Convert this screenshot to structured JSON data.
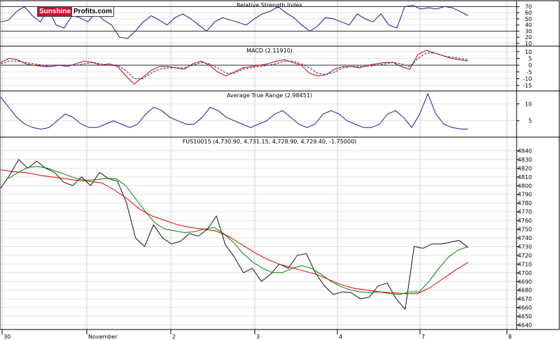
{
  "logo": {
    "part1": "Sunshine",
    "part2": "Profits.com"
  },
  "x_labels": [
    "30",
    "November",
    "2",
    "3",
    "4",
    "7",
    "8"
  ],
  "chart_data": [
    {
      "type": "line",
      "title": "Relative Strength Index",
      "ylim": [
        10,
        75
      ],
      "yticks": [
        10,
        20,
        30,
        40,
        50,
        60,
        70
      ],
      "reference_lines": [
        30,
        70
      ],
      "series": [
        {
          "values": [
            45,
            48,
            62,
            70,
            55,
            45,
            66,
            40,
            35,
            55,
            52,
            45,
            60,
            48,
            40,
            20,
            18,
            30,
            45,
            55,
            48,
            40,
            52,
            58,
            50,
            40,
            30,
            45,
            52,
            48,
            44,
            40,
            50,
            58,
            62,
            70,
            60,
            52,
            40,
            30,
            38,
            52,
            50,
            45,
            40,
            58,
            50,
            45,
            58,
            40,
            35,
            70,
            72,
            66,
            68,
            66,
            70,
            68,
            62,
            55
          ]
        }
      ]
    },
    {
      "type": "line",
      "title": "MACD (2.11910)",
      "ylim": [
        -17,
        12
      ],
      "yticks": [
        -15,
        -10,
        -5,
        0,
        5,
        10
      ],
      "series": [
        {
          "values": [
            2,
            5,
            4,
            1,
            0,
            -1,
            -1,
            0,
            -1,
            1,
            3,
            2,
            0,
            1,
            -1,
            -8,
            -14,
            -9,
            -4,
            -1,
            -1,
            -2,
            -3,
            1,
            3,
            0,
            -5,
            -8,
            -5,
            -2,
            -1,
            0,
            1,
            3,
            4,
            2,
            0,
            -6,
            -8,
            -7,
            -3,
            -1,
            -1,
            -2,
            0,
            1,
            2,
            2,
            -1,
            -3,
            8,
            11,
            9,
            7,
            5,
            4,
            3
          ]
        },
        {
          "values": [
            1,
            3,
            3,
            2,
            1,
            0,
            -1,
            0,
            0,
            0,
            1,
            2,
            1,
            0,
            0,
            -4,
            -10,
            -10,
            -6,
            -3,
            -2,
            -2,
            -2,
            0,
            2,
            1,
            -2,
            -6,
            -6,
            -3,
            -2,
            -1,
            0,
            1,
            3,
            3,
            1,
            -2,
            -6,
            -7,
            -5,
            -2,
            -1,
            -1,
            -1,
            0,
            1,
            2,
            1,
            -1,
            5,
            9,
            9,
            7,
            6,
            5,
            4
          ]
        }
      ]
    },
    {
      "type": "line",
      "title": "Average True Range (2.98451)",
      "ylim": [
        1,
        13
      ],
      "yticks": [
        5,
        10
      ],
      "series": [
        {
          "values": [
            12,
            9,
            6,
            4,
            3,
            2.5,
            3,
            5,
            7,
            6,
            4,
            3,
            3,
            4,
            5,
            4,
            3,
            4,
            7,
            9,
            8,
            6,
            5,
            4,
            4,
            6,
            9,
            8,
            6,
            5,
            4,
            3,
            4,
            5,
            7,
            8,
            6,
            4,
            3,
            4,
            7,
            8,
            7,
            5,
            4,
            3,
            3,
            4,
            7,
            8,
            6,
            3,
            7,
            13,
            7,
            4,
            3,
            2.6,
            2.5
          ]
        }
      ]
    },
    {
      "type": "line",
      "title": "FUS10015 (4,730.90, 4,731.15, 4,728.90, 4,729.40, -1.75000)",
      "ylim": [
        4638,
        4846
      ],
      "yticks": [
        4640,
        4650,
        4660,
        4670,
        4680,
        4690,
        4700,
        4710,
        4720,
        4730,
        4740,
        4750,
        4760,
        4770,
        4780,
        4790,
        4800,
        4810,
        4820,
        4830,
        4840
      ],
      "series": [
        {
          "values": [
            4797,
            4812,
            4830,
            4820,
            4828,
            4820,
            4815,
            4804,
            4800,
            4810,
            4800,
            4815,
            4808,
            4805,
            4780,
            4740,
            4730,
            4755,
            4740,
            4733,
            4736,
            4745,
            4742,
            4750,
            4765,
            4732,
            4718,
            4700,
            4705,
            4690,
            4698,
            4710,
            4705,
            4720,
            4722,
            4700,
            4685,
            4675,
            4678,
            4677,
            4670,
            4672,
            4685,
            4688,
            4670,
            4658,
            4730,
            4728,
            4733,
            4733,
            4735,
            4737,
            4729
          ]
        },
        {
          "values": [
            4808,
            4815,
            4821,
            4822,
            4820,
            4816,
            4812,
            4808,
            4806,
            4807,
            4808,
            4808,
            4800,
            4785,
            4770,
            4757,
            4750,
            4748,
            4746,
            4747,
            4750,
            4752,
            4745,
            4735,
            4722,
            4712,
            4705,
            4700,
            4700,
            4705,
            4708,
            4705,
            4698,
            4690,
            4684,
            4680,
            4678,
            4677,
            4678,
            4676,
            4675,
            4678,
            4678,
            4690,
            4705,
            4718,
            4726,
            4730
          ]
        },
        {
          "values": [
            4818,
            4816,
            4815,
            4812,
            4810,
            4808,
            4806,
            4805,
            4803,
            4795,
            4785,
            4773,
            4765,
            4760,
            4755,
            4752,
            4750,
            4748,
            4742,
            4733,
            4724,
            4716,
            4710,
            4706,
            4702,
            4698,
            4692,
            4686,
            4682,
            4680,
            4678,
            4677,
            4676,
            4676,
            4683,
            4693,
            4703,
            4712
          ]
        }
      ]
    }
  ]
}
